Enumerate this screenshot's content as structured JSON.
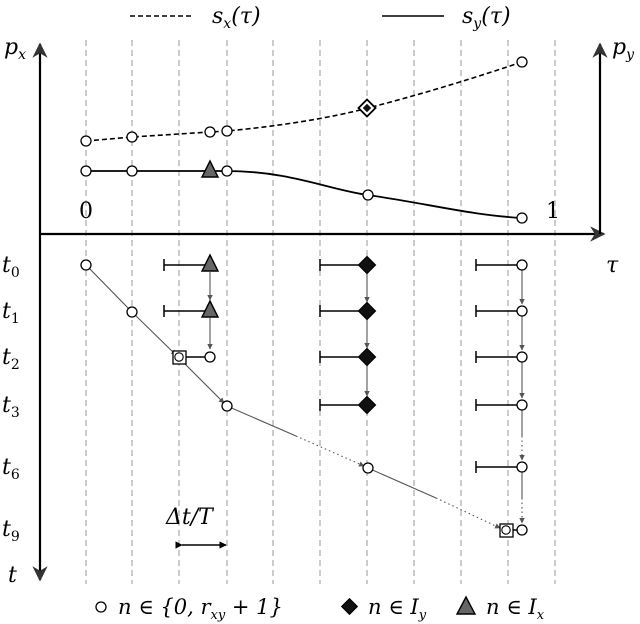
{
  "legend_top": {
    "sx_label": "s",
    "sx_sub": "x",
    "sx_arg": "(τ)",
    "sy_label": "s",
    "sy_sub": "y",
    "sy_arg": "(τ)"
  },
  "axes": {
    "px_label": "p",
    "px_sub": "x",
    "py_label": "p",
    "py_sub": "y",
    "tau_label": "τ",
    "t_label": "t",
    "tick_zero": "0",
    "tick_one": "1"
  },
  "time_rows": [
    {
      "base": "t",
      "sub": "0"
    },
    {
      "base": "t",
      "sub": "1"
    },
    {
      "base": "t",
      "sub": "2"
    },
    {
      "base": "t",
      "sub": "3"
    },
    {
      "base": "t",
      "sub": "6"
    },
    {
      "base": "t",
      "sub": "9"
    }
  ],
  "delta_label": "Δt/T",
  "legend_bottom": {
    "circle_text": "n ∈ {0, r",
    "circle_sub": "xy",
    "circle_tail": " + 1}",
    "diamond_text": "n ∈ I",
    "diamond_sub": "y",
    "triangle_text": "n ∈ I",
    "triangle_sub": "x"
  },
  "colors": {
    "line": "#000000",
    "dashed_grid": "#999999",
    "marker_fill": "#ffffff",
    "diamond_fill": "#111111",
    "triangle_fill": "#666666"
  }
}
